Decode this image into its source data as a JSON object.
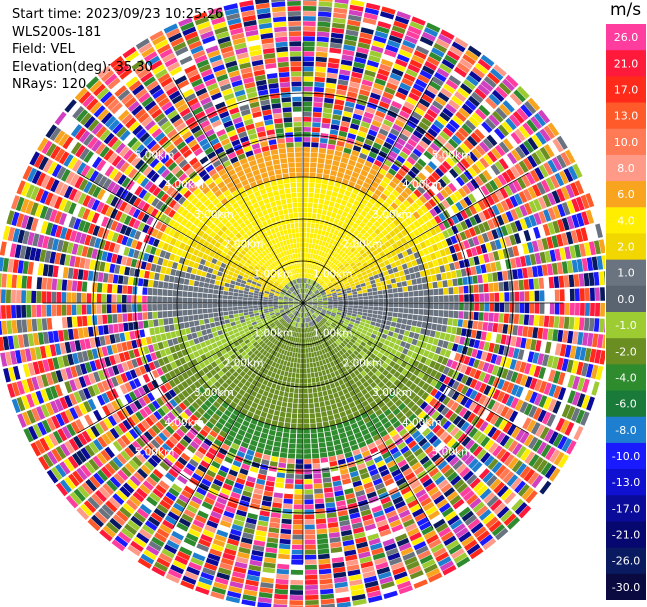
{
  "header": {
    "start_time": "Start time: 2023/09/23 10:25:26",
    "site": "WLS200s-181",
    "field": "Field: VEL",
    "elevation": "Elevation(deg): 35.30",
    "nrays": "NRays: 120"
  },
  "colorbar": {
    "unit": "m/s",
    "ticks": [
      "26.0",
      "21.0",
      "17.0",
      "13.0",
      "10.0",
      "8.0",
      "6.0",
      "4.0",
      "2.0",
      "1.0",
      "0.0",
      "-1.0",
      "-2.0",
      "-4.0",
      "-6.0",
      "-8.0",
      "-10.0",
      "-13.0",
      "-17.0",
      "-21.0",
      "-26.0",
      "-30.0"
    ],
    "colors": [
      "#ff3d9e",
      "#ff1a3c",
      "#ff2a1a",
      "#ff5a2a",
      "#ff7a55",
      "#ff9a88",
      "#f9a41e",
      "#ffee00",
      "#f2d600",
      "#6a7380",
      "#5a6370",
      "#9ccc32",
      "#6b8e23",
      "#2e8b2e",
      "#1a7a3a",
      "#1e7fd0",
      "#1a1aff",
      "#1010d0",
      "#0b0b99",
      "#070770",
      "#0a1a60",
      "#0a0a40"
    ]
  },
  "chart_data": {
    "type": "ppi",
    "field": "VEL",
    "units": "m/s",
    "range_ring_labels": [
      "1.00km",
      "2.00km",
      "3.00km",
      "4.00km",
      "5.00km"
    ],
    "range_rings_km": [
      1,
      2,
      3,
      4,
      5
    ],
    "n_rays": 120,
    "elevation_deg": 35.3,
    "wind_regions": [
      {
        "range_km": [
          0,
          0.5
        ],
        "velocity_ms": 0.0
      },
      {
        "range_km": [
          0.5,
          3.0
        ],
        "north_ms": 3.0,
        "south_ms": -3.0
      },
      {
        "range_km": [
          3.0,
          3.5
        ],
        "north_ms": 5.0,
        "south_ms": -5.5
      },
      {
        "range_km": [
          3.5,
          6.0
        ],
        "velocity_ms": "noise"
      }
    ]
  }
}
